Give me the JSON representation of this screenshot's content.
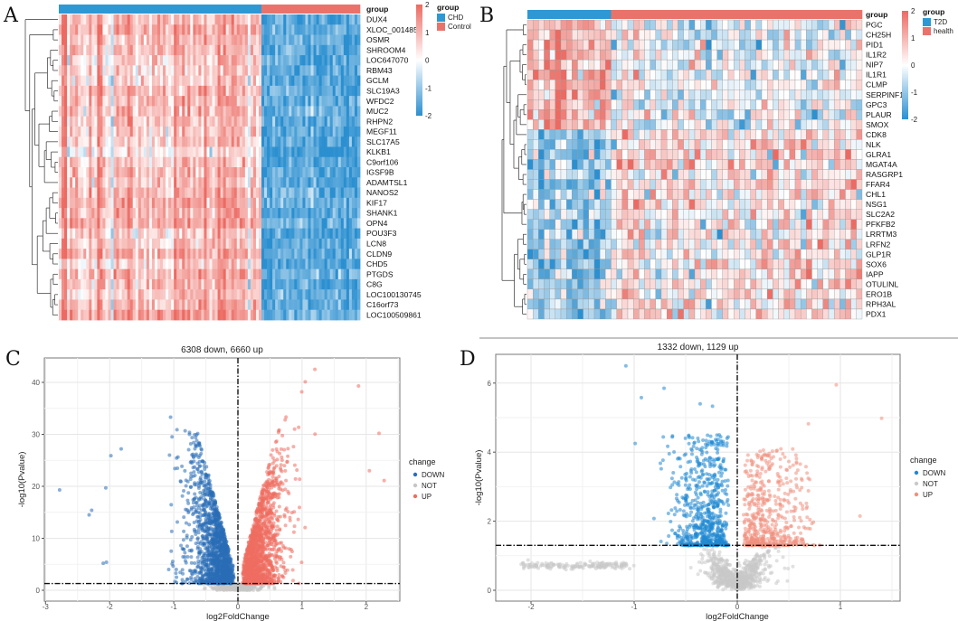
{
  "panels": {
    "a": "A",
    "b": "B",
    "c": "C",
    "d": "D"
  },
  "chart_data": [
    {
      "type": "heatmap",
      "panel": "A",
      "annotation_label": "group",
      "groups": [
        {
          "name": "CHD",
          "color": "#2e98d4",
          "columns": 74,
          "row_mean": 0.8
        },
        {
          "name": "Control",
          "color": "#e9736a",
          "columns": 36,
          "row_mean": -1.5
        }
      ],
      "rows": [
        "DUX4",
        "XLOC_001485",
        "OSMR",
        "SHROOM4",
        "LOC647070",
        "RBM43",
        "GCLM",
        "SLC19A3",
        "WFDC2",
        "MUC2",
        "RHPN2",
        "MEGF11",
        "SLC17A5",
        "KLKB1",
        "C9orf106",
        "IGSF9B",
        "ADAMTSL1",
        "NANOS2",
        "KIF17",
        "SHANK1",
        "OPN4",
        "POU3F3",
        "LCN8",
        "CLDN9",
        "CHD5",
        "PTGDS",
        "C8G",
        "LOC100130745",
        "C16orf73",
        "LOC100509861"
      ],
      "color_scale": {
        "min": -2,
        "max": 2,
        "low": "#2b8fd0",
        "mid": "#ffffff",
        "high": "#ec6a62",
        "ticks": [
          "2",
          "1",
          "0",
          "-1",
          "-2"
        ]
      },
      "row_dendrogram": true,
      "cell_borders": false
    },
    {
      "type": "heatmap",
      "panel": "B",
      "annotation_label": "group",
      "groups": [
        {
          "name": "T2D",
          "color": "#2e98d4",
          "columns": 15
        },
        {
          "name": "health",
          "color": "#e9736a",
          "columns": 45
        }
      ],
      "rows": [
        "PGC",
        "CH25H",
        "PID1",
        "IL1R2",
        "NIP7",
        "IL1R1",
        "CLMP",
        "SERPINF1",
        "GPC3",
        "PLAUR",
        "SMOX",
        "CDK8",
        "NLK",
        "GLRA1",
        "MGAT4A",
        "RASGRP1",
        "FFAR4",
        "CHL1",
        "NSG1",
        "SLC2A2",
        "PFKFB2",
        "LRRTM3",
        "LRFN2",
        "GLP1R",
        "SOX6",
        "IAPP",
        "OTULINL",
        "ERO1B",
        "RPH3AL",
        "PDX1"
      ],
      "row_pattern": {
        "up_in_T2D_rows": 11,
        "down_in_T2D_rows": 19
      },
      "color_scale": {
        "min": -2,
        "max": 2,
        "low": "#2b8fd0",
        "mid": "#ffffff",
        "high": "#ec6a62",
        "ticks": [
          "2",
          "1",
          "0",
          "-1",
          "-2"
        ]
      },
      "row_dendrogram": true,
      "cell_borders": true
    },
    {
      "type": "scatter",
      "panel": "C",
      "title": "6308 down, 6660 up",
      "xlabel": "log2FoldChange",
      "ylabel": "-log10(Pvalue)",
      "xlim": [
        -3.05,
        2.5
      ],
      "ylim": [
        -2,
        44.5
      ],
      "xticks": [
        "-3",
        "-2",
        "-1",
        "0",
        "1",
        "2"
      ],
      "yticks": [
        "0",
        "10",
        "20",
        "30",
        "40"
      ],
      "threshold_x": 0,
      "threshold_y": 1.3,
      "legend": {
        "title": "change",
        "position": "right",
        "items": [
          "DOWN",
          "NOT",
          "UP"
        ]
      },
      "colors": {
        "DOWN": "#2a6db6",
        "NOT": "#c6c6c6",
        "UP": "#ee6e60"
      },
      "counts": {
        "DOWN": 6308,
        "UP": 6660
      },
      "outliers": [
        [
          -2.78,
          19.3
        ],
        [
          -2.32,
          14.5
        ],
        [
          -2.28,
          15.4
        ],
        [
          -2.1,
          5.2
        ],
        [
          -2.06,
          19.7
        ],
        [
          -2.05,
          5.4
        ],
        [
          -1.98,
          25.9
        ],
        [
          -1.82,
          27.2
        ],
        [
          -1.05,
          33.3
        ],
        [
          -0.95,
          30.9
        ],
        [
          1.05,
          40.1
        ],
        [
          1.2,
          42.5
        ],
        [
          1.88,
          39.3
        ],
        [
          2.2,
          30.2
        ],
        [
          2.28,
          21.1
        ],
        [
          2.05,
          23.0
        ]
      ]
    },
    {
      "type": "scatter",
      "panel": "D",
      "title": "1332 down, 1129 up",
      "xlabel": "log2FoldChange",
      "ylabel": "-log10(Pvalue)",
      "xlim": [
        -2.35,
        1.57
      ],
      "ylim": [
        -0.3,
        6.8
      ],
      "xticks": [
        "-2",
        "-1",
        "0",
        "1"
      ],
      "yticks": [
        "0",
        "2",
        "4",
        "6"
      ],
      "threshold_x": 0,
      "threshold_y": 1.3,
      "legend": {
        "title": "change",
        "position": "right",
        "items": [
          "DOWN",
          "NOT",
          "UP"
        ]
      },
      "colors": {
        "DOWN": "#1f88d2",
        "NOT": "#c9c9c9",
        "UP": "#f0907d"
      },
      "counts": {
        "DOWN": 1332,
        "UP": 1129
      },
      "outliers": [
        [
          -1.08,
          6.5
        ],
        [
          -0.71,
          5.85
        ],
        [
          -0.93,
          5.58
        ],
        [
          -0.99,
          4.25
        ],
        [
          -0.36,
          5.4
        ],
        [
          -0.24,
          5.33
        ],
        [
          0.96,
          5.95
        ],
        [
          1.4,
          4.98
        ],
        [
          1.19,
          2.15
        ],
        [
          0.69,
          4.82
        ]
      ]
    }
  ]
}
